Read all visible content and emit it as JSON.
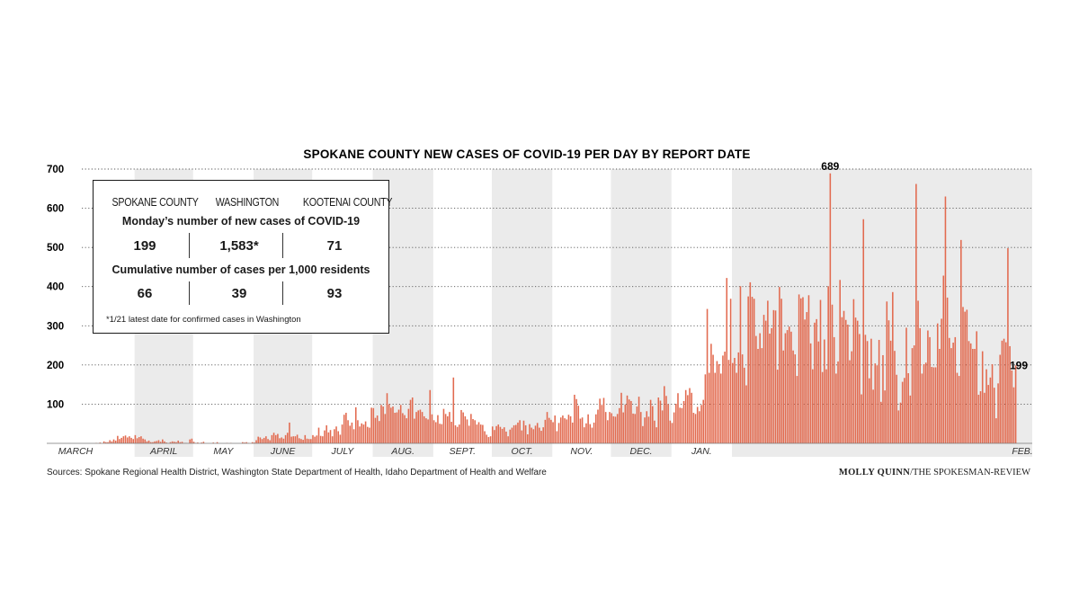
{
  "chart_data": {
    "type": "bar",
    "title": "SPOKANE COUNTY NEW CASES OF COVID-19 PER DAY BY REPORT DATE",
    "ylim": [
      0,
      700
    ],
    "yticks": [
      "100",
      "200",
      "300",
      "400",
      "500",
      "600",
      "700"
    ],
    "grid": "dotted horizontal",
    "months": [
      "MARCH",
      "APRIL",
      "MAY",
      "JUNE",
      "JULY",
      "AUG.",
      "SEPT.",
      "OCT.",
      "NOV.",
      "DEC.",
      "JAN.",
      "FEB."
    ],
    "bar_color": "#e26a4f",
    "values": [
      0,
      0,
      0,
      0,
      0,
      0,
      0,
      1,
      0,
      2,
      0,
      5,
      3,
      3,
      8,
      5,
      10,
      7,
      19,
      11,
      14,
      18,
      20,
      15,
      18,
      14,
      11,
      21,
      13,
      16,
      18,
      12,
      10,
      5,
      7,
      3,
      3,
      5,
      6,
      8,
      4,
      10,
      5,
      2,
      0,
      3,
      5,
      4,
      3,
      7,
      3,
      4,
      1,
      1,
      0,
      10,
      12,
      4,
      1,
      2,
      0,
      2,
      4,
      0,
      0,
      0,
      0,
      2,
      0,
      3,
      0,
      0,
      0,
      0,
      1,
      0,
      1,
      0,
      0,
      0,
      0,
      0,
      3,
      2,
      3,
      1,
      0,
      3,
      2,
      8,
      17,
      15,
      11,
      14,
      18,
      11,
      8,
      21,
      27,
      21,
      24,
      13,
      15,
      12,
      21,
      27,
      53,
      17,
      18,
      18,
      22,
      13,
      11,
      9,
      21,
      12,
      11,
      11,
      21,
      17,
      20,
      40,
      19,
      18,
      33,
      46,
      28,
      34,
      18,
      36,
      43,
      31,
      22,
      48,
      73,
      78,
      59,
      45,
      53,
      36,
      92,
      59,
      43,
      51,
      48,
      56,
      42,
      40,
      91,
      90,
      65,
      71,
      57,
      98,
      94,
      75,
      128,
      100,
      91,
      94,
      78,
      79,
      86,
      98,
      77,
      72,
      64,
      88,
      111,
      117,
      63,
      80,
      84,
      86,
      80,
      69,
      64,
      61,
      136,
      74,
      59,
      54,
      72,
      50,
      49,
      88,
      75,
      69,
      80,
      55,
      168,
      46,
      42,
      48,
      85,
      79,
      69,
      61,
      45,
      75,
      62,
      59,
      48,
      54,
      48,
      47,
      31,
      22,
      16,
      18,
      43,
      34,
      44,
      48,
      42,
      37,
      41,
      30,
      18,
      35,
      40,
      46,
      47,
      53,
      59,
      33,
      58,
      46,
      23,
      49,
      40,
      36,
      45,
      52,
      40,
      32,
      41,
      60,
      80,
      65,
      60,
      54,
      71,
      31,
      52,
      66,
      71,
      64,
      61,
      73,
      69,
      53,
      124,
      113,
      96,
      63,
      66,
      41,
      51,
      74,
      49,
      40,
      53,
      74,
      86,
      114,
      98,
      116,
      80,
      59,
      80,
      77,
      69,
      68,
      75,
      90,
      129,
      79,
      99,
      122,
      112,
      108,
      76,
      75,
      94,
      119,
      80,
      44,
      66,
      82,
      68,
      111,
      95,
      58,
      41,
      117,
      109,
      84,
      146,
      121,
      100,
      58,
      52,
      79,
      101,
      128,
      91,
      90,
      108,
      136,
      123,
      141,
      129,
      78,
      75,
      93,
      82,
      98,
      111,
      176,
      343,
      180,
      254,
      226,
      180,
      210,
      202,
      178,
      224,
      234,
      422,
      213,
      369,
      205,
      218,
      180,
      232,
      401,
      227,
      193,
      148,
      375,
      411,
      374,
      369,
      274,
      241,
      281,
      243,
      328,
      313,
      364,
      280,
      294,
      340,
      339,
      188,
      399,
      369,
      237,
      281,
      289,
      298,
      285,
      237,
      227,
      172,
      380,
      370,
      373,
      316,
      335,
      378,
      255,
      189,
      308,
      317,
      260,
      366,
      182,
      265,
      189,
      401,
      689,
      354,
      271,
      178,
      209,
      417,
      322,
      338,
      315,
      303,
      212,
      235,
      368,
      321,
      313,
      279,
      125,
      572,
      277,
      261,
      166,
      267,
      137,
      204,
      199,
      264,
      106,
      225,
      135,
      362,
      314,
      262,
      386,
      236,
      175,
      84,
      104,
      157,
      167,
      295,
      179,
      122,
      243,
      250,
      662,
      364,
      294,
      178,
      202,
      206,
      288,
      271,
      195,
      194,
      194,
      306,
      241,
      318,
      428,
      630,
      372,
      269,
      243,
      257,
      271,
      180,
      172,
      519,
      348,
      336,
      341,
      261,
      255,
      241,
      241,
      286,
      124,
      133,
      235,
      129,
      189,
      149,
      168,
      202,
      142,
      64,
      153,
      226,
      262,
      267,
      258,
      498,
      248,
      186,
      143,
      199
    ]
  },
  "annotations": {
    "peak": "689",
    "latest": "199"
  },
  "info_box": {
    "columns": [
      "SPOKANE COUNTY",
      "WASHINGTON",
      "KOOTENAI COUNTY"
    ],
    "section1_title": "Monday’s number of new cases of COVID-19",
    "section1_values": [
      "199",
      "1,583*",
      "71"
    ],
    "section2_title": "Cumulative number of cases per 1,000 residents",
    "section2_values": [
      "66",
      "39",
      "93"
    ],
    "footnote": "*1/21 latest date for confirmed cases in Washington"
  },
  "footer": {
    "sources": "Sources: Spokane Regional Health District, Washington State Department of Health, Idaho Department of Health and Welfare",
    "credit_name": "MOLLY QUINN",
    "credit_org": "/THE SPOKESMAN-REVIEW"
  }
}
